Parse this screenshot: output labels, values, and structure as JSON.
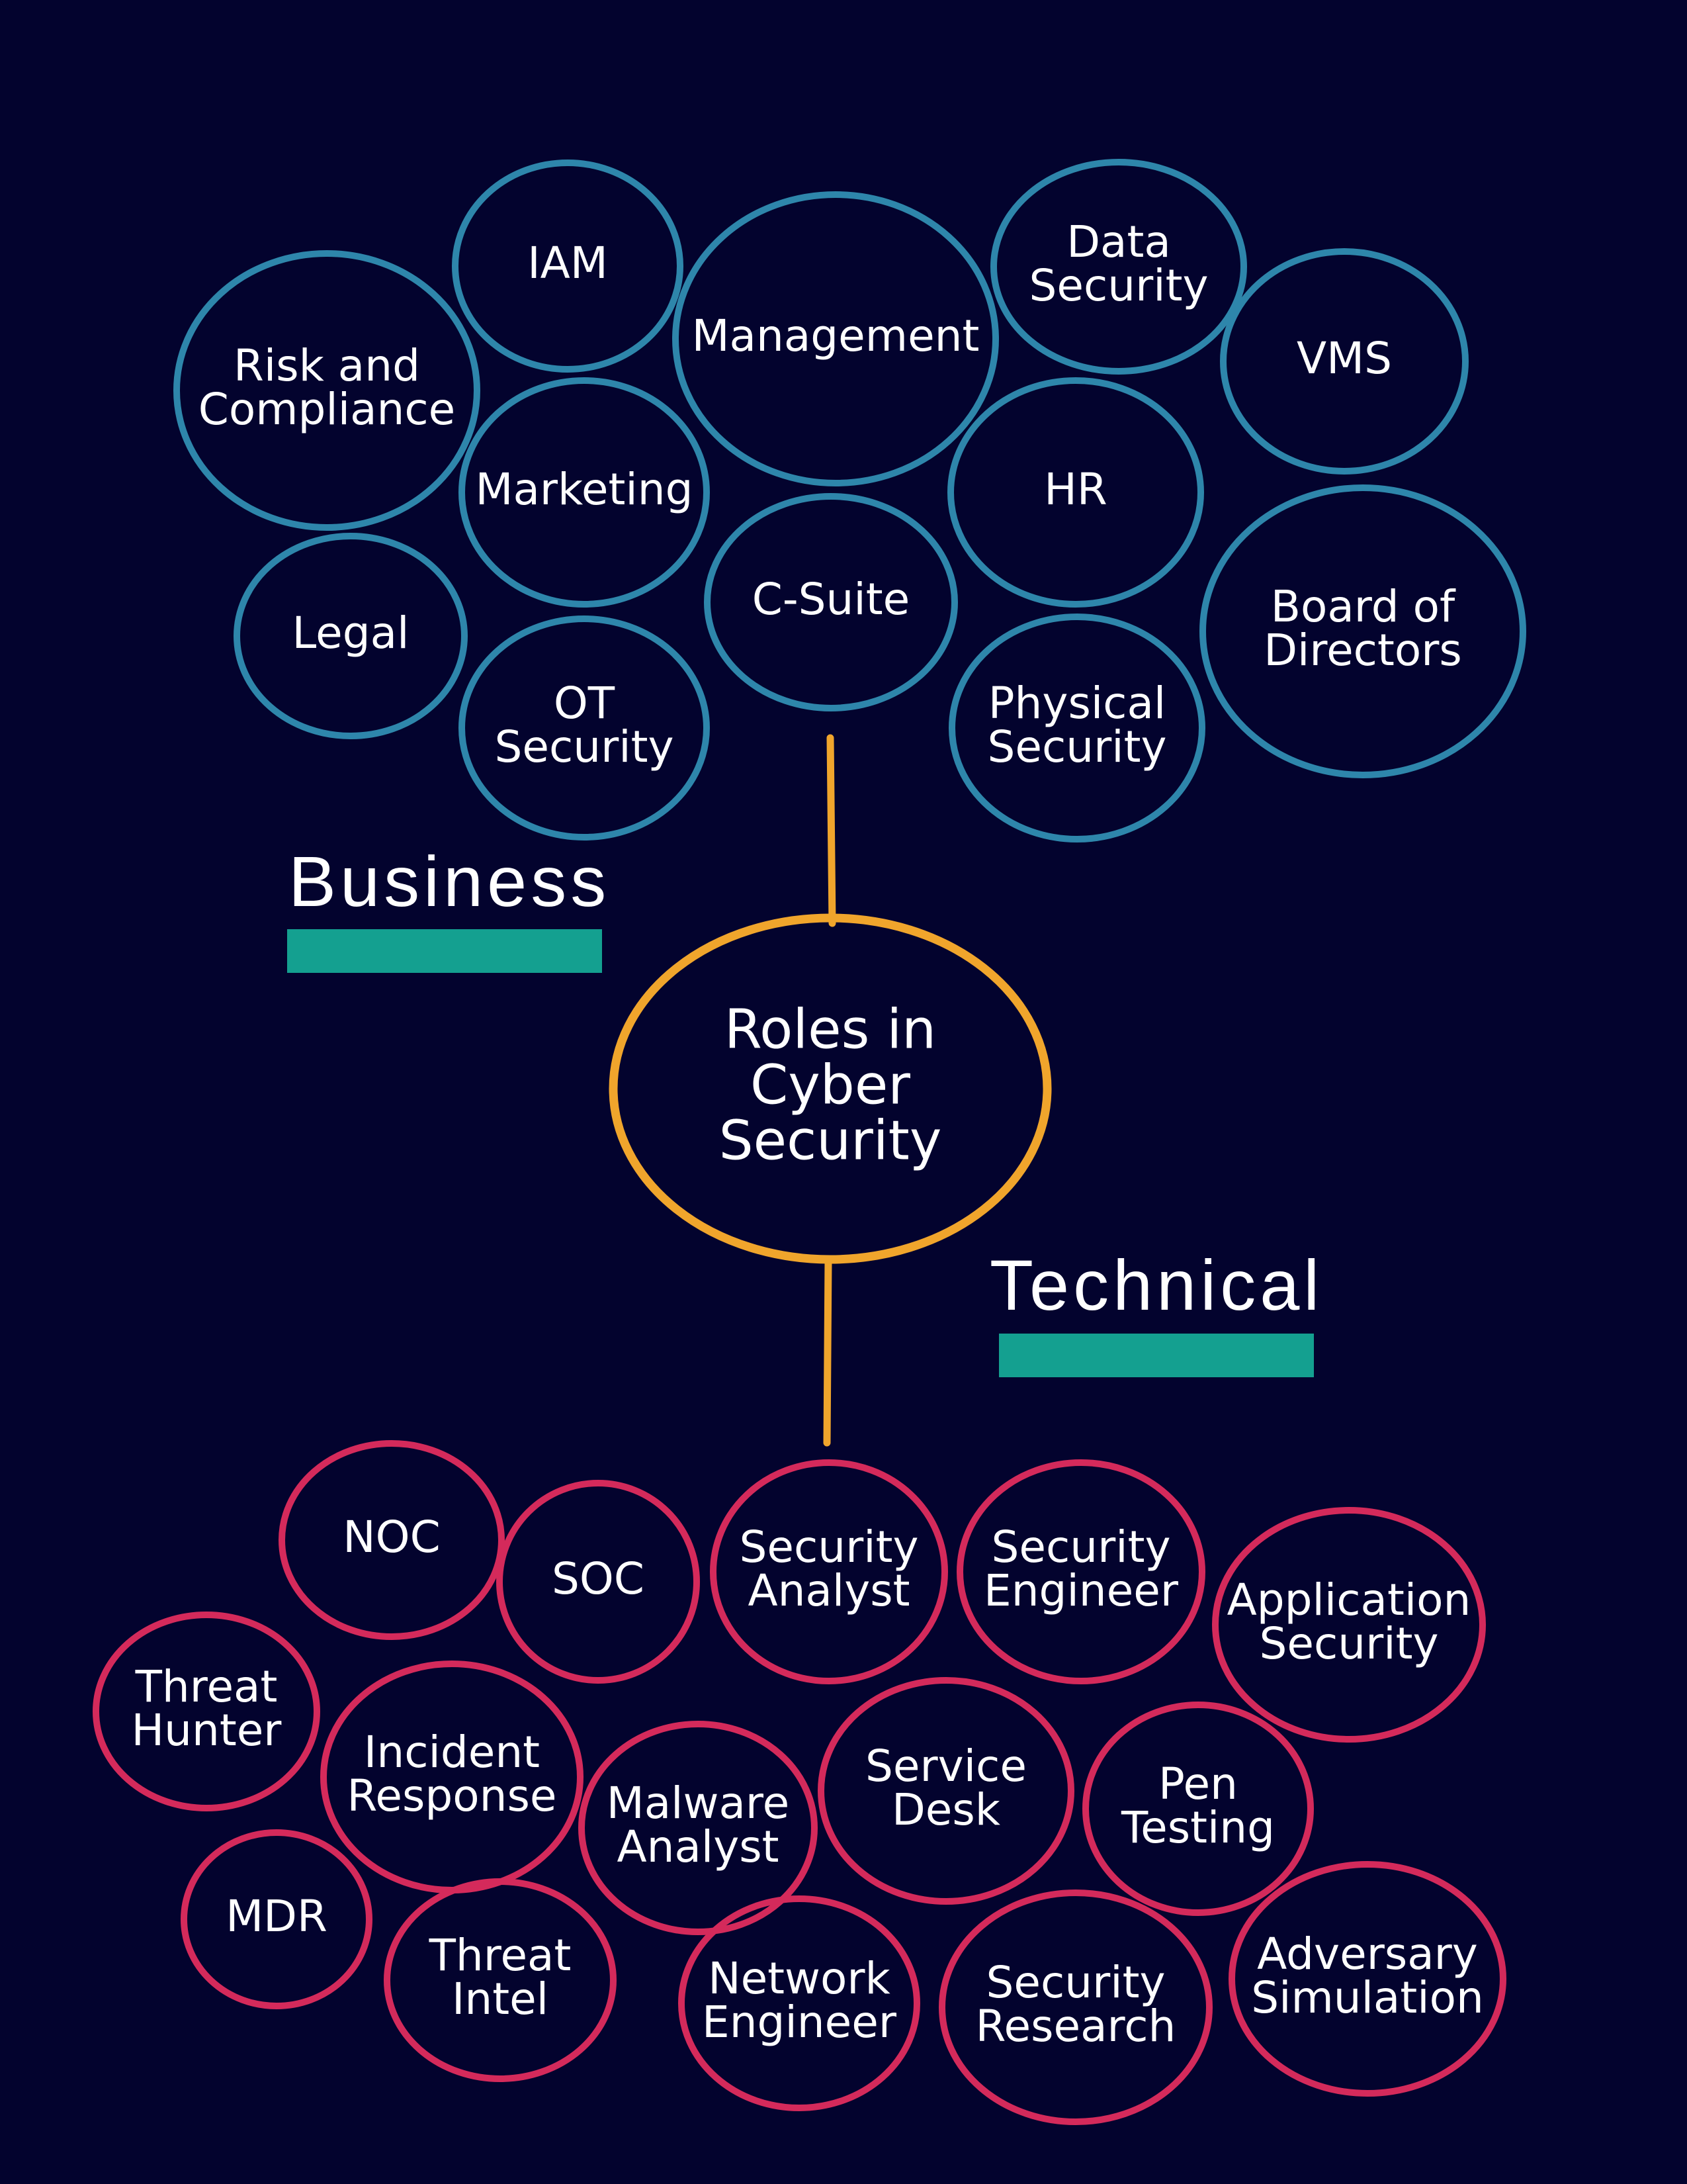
{
  "center": {
    "lines": [
      "Roles in",
      "Cyber",
      "Security"
    ]
  },
  "sections": {
    "business": {
      "title": "Business"
    },
    "technical": {
      "title": "Technical"
    }
  },
  "colors": {
    "background": "#03032e",
    "business_ring": "#2e86ab",
    "technical_ring": "#d42a5b",
    "center_ring": "#f0a52c",
    "connector": "#f0a52c",
    "section_bar": "#14a090",
    "text": "#ffffff"
  },
  "business_nodes": [
    {
      "id": "iam",
      "lines": [
        "IAM"
      ]
    },
    {
      "id": "management",
      "lines": [
        "Management"
      ]
    },
    {
      "id": "data-security",
      "lines": [
        "Data",
        "Security"
      ]
    },
    {
      "id": "vms",
      "lines": [
        "VMS"
      ]
    },
    {
      "id": "risk-and-compliance",
      "lines": [
        "Risk and",
        "Compliance"
      ]
    },
    {
      "id": "marketing",
      "lines": [
        "Marketing"
      ]
    },
    {
      "id": "hr",
      "lines": [
        "HR"
      ]
    },
    {
      "id": "legal",
      "lines": [
        "Legal"
      ]
    },
    {
      "id": "c-suite",
      "lines": [
        "C-Suite"
      ]
    },
    {
      "id": "board-of-directors",
      "lines": [
        "Board of",
        "Directors"
      ]
    },
    {
      "id": "ot-security",
      "lines": [
        "OT",
        "Security"
      ]
    },
    {
      "id": "physical-security",
      "lines": [
        "Physical",
        "Security"
      ]
    }
  ],
  "technical_nodes": [
    {
      "id": "noc",
      "lines": [
        "NOC"
      ]
    },
    {
      "id": "soc",
      "lines": [
        "SOC"
      ]
    },
    {
      "id": "security-analyst",
      "lines": [
        "Security",
        "Analyst"
      ]
    },
    {
      "id": "security-engineer",
      "lines": [
        "Security",
        "Engineer"
      ]
    },
    {
      "id": "application-security",
      "lines": [
        "Application",
        "Security"
      ]
    },
    {
      "id": "threat-hunter",
      "lines": [
        "Threat",
        "Hunter"
      ]
    },
    {
      "id": "incident-response",
      "lines": [
        "Incident",
        "Response"
      ]
    },
    {
      "id": "malware-analyst",
      "lines": [
        "Malware",
        "Analyst"
      ]
    },
    {
      "id": "service-desk",
      "lines": [
        "Service",
        "Desk"
      ]
    },
    {
      "id": "pen-testing",
      "lines": [
        "Pen",
        "Testing"
      ]
    },
    {
      "id": "mdr",
      "lines": [
        "MDR"
      ]
    },
    {
      "id": "threat-intel",
      "lines": [
        "Threat",
        "Intel"
      ]
    },
    {
      "id": "network-engineer",
      "lines": [
        "Network",
        "Engineer"
      ]
    },
    {
      "id": "security-research",
      "lines": [
        "Security",
        "Research"
      ]
    },
    {
      "id": "adversary-simulation",
      "lines": [
        "Adversary",
        "Simulation"
      ]
    }
  ]
}
